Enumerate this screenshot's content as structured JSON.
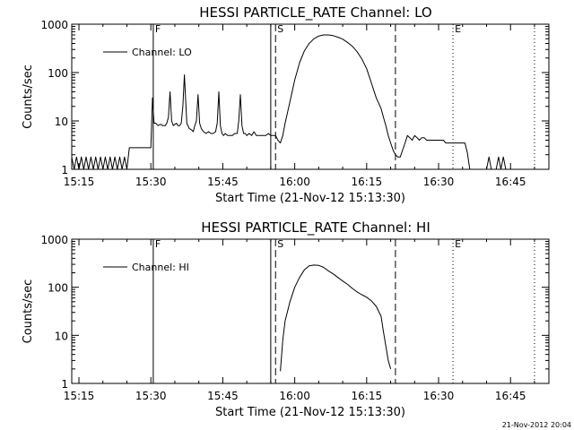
{
  "footer": {
    "timestamp": "21-Nov-2012 20:04"
  },
  "chart_data": [
    {
      "type": "line",
      "title": "HESSI PARTICLE_RATE Channel: LO",
      "xlabel": "Start Time (21-Nov-12 15:13:30)",
      "ylabel": "Counts/sec",
      "y_scale": "log",
      "ylim": [
        1,
        1000
      ],
      "xlim": [
        "15:13:30",
        "16:53:00"
      ],
      "x_ticks": [
        "15:15",
        "15:30",
        "15:45",
        "16:00",
        "16:15",
        "16:30",
        "16:45"
      ],
      "y_ticks": [
        "1",
        "10",
        "100",
        "1000"
      ],
      "legend": {
        "position": "top-left",
        "entries": [
          "Channel: LO"
        ]
      },
      "grid": false,
      "markers": [
        {
          "label": "F",
          "time": "15:30:30",
          "style": "solid"
        },
        {
          "label": "",
          "time": "15:55:00",
          "style": "solid"
        },
        {
          "label": "S",
          "time": "15:56:00",
          "style": "dashed"
        },
        {
          "label": "",
          "time": "16:21:00",
          "style": "dashed"
        },
        {
          "label": "E",
          "time": "16:33:00",
          "style": "dotted"
        },
        {
          "label": "",
          "time": "16:50:00",
          "style": "dotted"
        }
      ],
      "series": [
        {
          "segments": [
            {
              "x": [
                "15:13:30",
                "15:14:00",
                "15:14:30",
                "15:15:00",
                "15:15:30",
                "15:16:00",
                "15:16:30",
                "15:17:00",
                "15:17:30",
                "15:18:00",
                "15:18:30",
                "15:19:00",
                "15:19:30",
                "15:20:00",
                "15:20:30",
                "15:21:00",
                "15:21:30",
                "15:22:00",
                "15:22:30",
                "15:23:00",
                "15:23:30",
                "15:24:00",
                "15:24:30",
                "15:25:00",
                "15:25:30",
                "15:26:00",
                "15:26:30",
                "15:27:00",
                "15:27:30",
                "15:28:00",
                "15:28:30",
                "15:29:00",
                "15:29:30",
                "15:30:00",
                "15:30:20",
                "15:30:40",
                "15:31:00",
                "15:31:30",
                "15:32:00",
                "15:32:30",
                "15:33:00",
                "15:33:20",
                "15:33:40",
                "15:34:00",
                "15:34:20",
                "15:34:40",
                "15:35:00",
                "15:35:20",
                "15:35:40",
                "15:36:00",
                "15:36:20",
                "15:36:40",
                "15:37:00",
                "15:37:30",
                "15:38:00",
                "15:38:30",
                "15:38:50",
                "15:39:10",
                "15:39:30",
                "15:39:50",
                "15:40:10",
                "15:40:30",
                "15:41:00",
                "15:41:30",
                "15:42:00",
                "15:42:30",
                "15:43:00",
                "15:43:30",
                "15:43:50",
                "15:44:10",
                "15:44:30",
                "15:44:50",
                "15:45:10",
                "15:45:30",
                "15:46:00",
                "15:46:30",
                "15:47:00",
                "15:47:30",
                "15:48:00",
                "15:48:20",
                "15:48:40",
                "15:49:00",
                "15:49:20",
                "15:49:40",
                "15:50:00",
                "15:50:30",
                "15:51:00",
                "15:51:30",
                "15:52:00",
                "15:52:30",
                "15:53:00",
                "15:53:30",
                "15:54:00",
                "15:54:30",
                "15:55:00",
                "15:55:30",
                "15:56:00",
                "15:56:30",
                "15:57:00",
                "15:57:30",
                "15:58:00",
                "15:59:00",
                "16:00:00",
                "16:01:00",
                "16:02:00",
                "16:03:00",
                "16:04:00",
                "16:05:00",
                "16:06:00",
                "16:07:00",
                "16:08:00",
                "16:09:00",
                "16:10:00",
                "16:11:00",
                "16:12:00",
                "16:13:00",
                "16:14:00",
                "16:15:00",
                "16:16:00",
                "16:17:00",
                "16:18:00",
                "16:18:30",
                "16:19:00",
                "16:19:30",
                "16:20:00",
                "16:20:30",
                "16:21:00",
                "16:21:30",
                "16:22:00",
                "16:22:30",
                "16:23:00",
                "16:23:30",
                "16:24:00",
                "16:24:30",
                "16:25:00",
                "16:25:30",
                "16:26:00",
                "16:26:30",
                "16:27:00",
                "16:27:30",
                "16:28:00",
                "16:28:30",
                "16:29:00",
                "16:29:30",
                "16:30:00",
                "16:30:30",
                "16:31:00",
                "16:31:30",
                "16:32:00",
                "16:32:30",
                "16:33:00",
                "16:33:30",
                "16:34:00",
                "16:34:30",
                "16:35:00",
                "16:35:30",
                "16:36:00",
                "16:36:30",
                "16:37:00",
                "16:37:30"
              ],
              "y": [
                1.8,
                1,
                1.8,
                1,
                1.8,
                1,
                1.8,
                1,
                1.8,
                1,
                1.8,
                1,
                1.8,
                1,
                1.8,
                1,
                1.8,
                1,
                1.8,
                1,
                1.8,
                1,
                1.8,
                1,
                2.8,
                2.8,
                2.8,
                2.8,
                2.8,
                2.8,
                2.8,
                2.8,
                2.8,
                2.8,
                30,
                9,
                9,
                8,
                8.5,
                8,
                8,
                9,
                12,
                40,
                10,
                8,
                8.5,
                9,
                8,
                8,
                9,
                20,
                90,
                9,
                7,
                6.5,
                6,
                8,
                10,
                35,
                9,
                7,
                6,
                5.5,
                6,
                5.5,
                5.5,
                6,
                9,
                40,
                8,
                5.5,
                5,
                5.5,
                5,
                5,
                5,
                5.5,
                5.5,
                10,
                35,
                8,
                5.5,
                5.5,
                5,
                5.5,
                5,
                6,
                5,
                5,
                5,
                5,
                5,
                5.5,
                5,
                5,
                5,
                4,
                3.5,
                5,
                9,
                25,
                70,
                160,
                280,
                400,
                500,
                570,
                600,
                600,
                580,
                540,
                490,
                420,
                350,
                270,
                190,
                120,
                60,
                30,
                18,
                12,
                8,
                5,
                3.5,
                2.5,
                2,
                1.8,
                1.8,
                2.5,
                3.5,
                5,
                4.5,
                4,
                5,
                4.5,
                4,
                4.5,
                4.5,
                4,
                4,
                4,
                4,
                4,
                4,
                4,
                4,
                3.5,
                3.5,
                3.5,
                3.5,
                3.5,
                3.5,
                3.5,
                3.5,
                3.5,
                2.2,
                1,
                1,
                1
              ]
            },
            {
              "x": [
                "16:40:00",
                "16:40:30",
                "16:41:00",
                "16:41:30"
              ],
              "y": [
                1,
                1.8,
                1,
                1
              ]
            },
            {
              "x": [
                "16:42:00",
                "16:42:30",
                "16:43:00",
                "16:43:30",
                "16:44:00"
              ],
              "y": [
                1,
                1.8,
                1,
                1.8,
                1
              ]
            }
          ]
        }
      ]
    },
    {
      "type": "line",
      "title": "HESSI PARTICLE_RATE Channel: HI",
      "xlabel": "Start Time (21-Nov-12 15:13:30)",
      "ylabel": "Counts/sec",
      "y_scale": "log",
      "ylim": [
        1,
        1000
      ],
      "xlim": [
        "15:13:30",
        "16:53:00"
      ],
      "x_ticks": [
        "15:15",
        "15:30",
        "15:45",
        "16:00",
        "16:15",
        "16:30",
        "16:45"
      ],
      "y_ticks": [
        "1",
        "10",
        "100",
        "1000"
      ],
      "legend": {
        "position": "top-left",
        "entries": [
          "Channel: HI"
        ]
      },
      "grid": false,
      "markers": [
        {
          "label": "F",
          "time": "15:30:30",
          "style": "solid"
        },
        {
          "label": "",
          "time": "15:55:00",
          "style": "solid"
        },
        {
          "label": "S",
          "time": "15:56:00",
          "style": "dashed"
        },
        {
          "label": "",
          "time": "16:21:00",
          "style": "dashed"
        },
        {
          "label": "E",
          "time": "16:33:00",
          "style": "dotted"
        },
        {
          "label": "",
          "time": "16:50:00",
          "style": "dotted"
        }
      ],
      "series": [
        {
          "segments": [
            {
              "x": [
                "15:57:00",
                "15:57:30",
                "15:58:00",
                "15:59:00",
                "16:00:00",
                "16:01:00",
                "16:02:00",
                "16:03:00",
                "16:04:00",
                "16:05:00",
                "16:06:00",
                "16:07:00",
                "16:08:00",
                "16:09:00",
                "16:10:00",
                "16:11:00",
                "16:12:00",
                "16:13:00",
                "16:14:00",
                "16:15:00",
                "16:16:00",
                "16:17:00",
                "16:18:00",
                "16:18:30",
                "16:19:00",
                "16:19:30",
                "16:20:00"
              ],
              "y": [
                1.8,
                8,
                20,
                50,
                100,
                160,
                230,
                280,
                290,
                285,
                260,
                220,
                190,
                160,
                135,
                115,
                95,
                80,
                70,
                62,
                52,
                40,
                25,
                12,
                6,
                3,
                2
              ]
            }
          ]
        }
      ]
    }
  ]
}
